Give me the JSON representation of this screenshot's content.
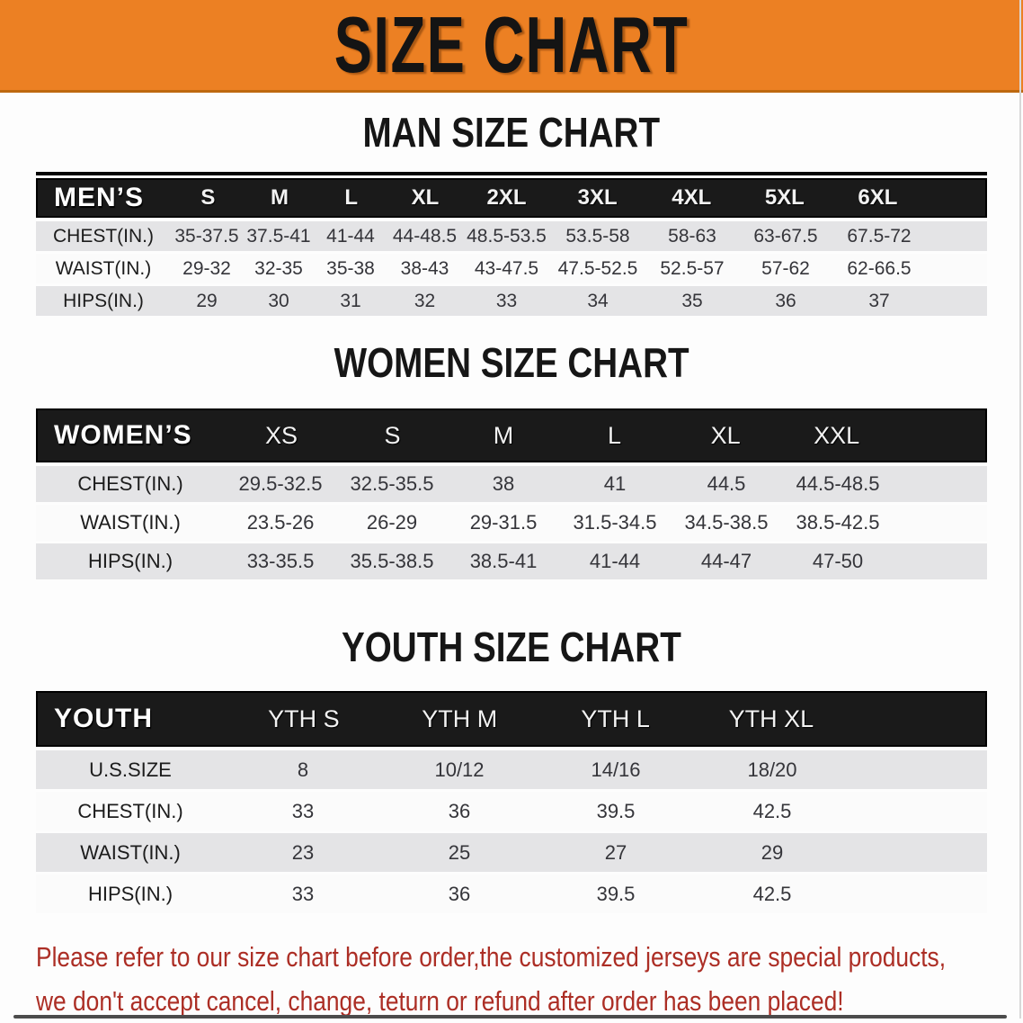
{
  "banner": {
    "title": "SIZE CHART"
  },
  "colors": {
    "banner_orange": "#EC8023",
    "banner_edge": "#BE690F",
    "header_black": "#1a1a1a",
    "row_gray": "#e4e4e6",
    "row_white": "#fbfbfb",
    "red_text": "#AC2E25"
  },
  "men": {
    "heading": "MAN SIZE CHART",
    "label": "MEN’S",
    "columns": [
      "S",
      "M",
      "L",
      "XL",
      "2XL",
      "3XL",
      "4XL",
      "5XL",
      "6XL"
    ],
    "rows": [
      {
        "label": "CHEST(IN.)",
        "values": [
          "35-37.5",
          "37.5-41",
          "41-44",
          "44-48.5",
          "48.5-53.5",
          "53.5-58",
          "58-63",
          "63-67.5",
          "67.5-72"
        ]
      },
      {
        "label": "WAIST(IN.)",
        "values": [
          "29-32",
          "32-35",
          "35-38",
          "38-43",
          "43-47.5",
          "47.5-52.5",
          "52.5-57",
          "57-62",
          "62-66.5"
        ]
      },
      {
        "label": "HIPS(IN.)",
        "values": [
          "29",
          "30",
          "31",
          "32",
          "33",
          "34",
          "35",
          "36",
          "37"
        ]
      }
    ]
  },
  "women": {
    "heading": "WOMEN SIZE CHART",
    "label": "WOMEN’S",
    "columns": [
      "XS",
      "S",
      "M",
      "L",
      "XL",
      "XXL"
    ],
    "rows": [
      {
        "label": "CHEST(IN.)",
        "values": [
          "29.5-32.5",
          "32.5-35.5",
          "38",
          "41",
          "44.5",
          "44.5-48.5"
        ]
      },
      {
        "label": "WAIST(IN.)",
        "values": [
          "23.5-26",
          "26-29",
          "29-31.5",
          "31.5-34.5",
          "34.5-38.5",
          "38.5-42.5"
        ]
      },
      {
        "label": "HIPS(IN.)",
        "values": [
          "33-35.5",
          "35.5-38.5",
          "38.5-41",
          "41-44",
          "44-47",
          "47-50"
        ]
      }
    ]
  },
  "youth": {
    "heading": "YOUTH SIZE CHART",
    "label": "YOUTH",
    "columns": [
      "YTH S",
      "YTH M",
      "YTH L",
      "YTH XL"
    ],
    "rows": [
      {
        "label": "U.S.SIZE",
        "values": [
          "8",
          "10/12",
          "14/16",
          "18/20"
        ]
      },
      {
        "label": "CHEST(IN.)",
        "values": [
          "33",
          "36",
          "39.5",
          "42.5"
        ]
      },
      {
        "label": "WAIST(IN.)",
        "values": [
          "23",
          "25",
          "27",
          "29"
        ]
      },
      {
        "label": "HIPS(IN.)",
        "values": [
          "33",
          "36",
          "39.5",
          "42.5"
        ]
      }
    ]
  },
  "disclaimer": {
    "line1": "Please refer to our size chart before order,the customized jerseys are special products,",
    "line2": "we don't accept cancel, change, teturn or refund after order has been placed!"
  }
}
